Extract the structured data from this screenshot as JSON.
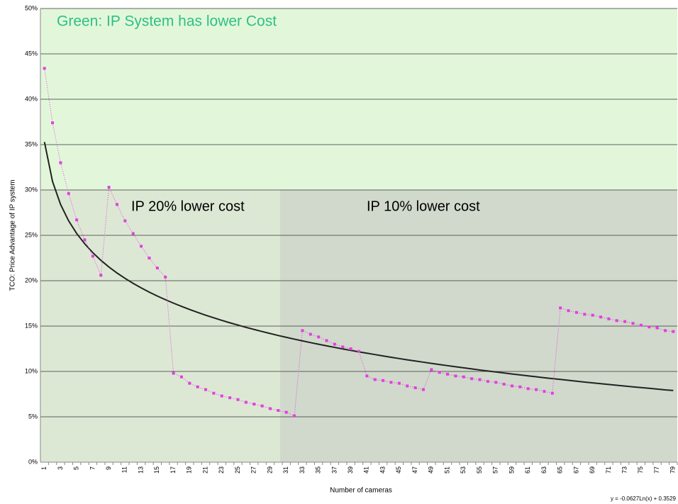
{
  "chart_data": {
    "type": "line",
    "annotations": [
      "Green: IP System has lower Cost",
      "IP 20% lower cost",
      "IP 10% lower cost"
    ],
    "y_label": "TCO: Price Advantage of IP system",
    "x_label": "Number of cameras",
    "categories": [
      "1",
      null,
      "3",
      null,
      "5",
      null,
      "7",
      null,
      "9",
      null,
      "11",
      null,
      "13",
      null,
      "15",
      null,
      "17",
      null,
      "19",
      null,
      "21",
      null,
      "23",
      null,
      "25",
      null,
      "27",
      null,
      "29",
      null,
      "31",
      null,
      "33",
      null,
      "35",
      null,
      "37",
      null,
      "39",
      null,
      "41",
      null,
      "43",
      null,
      "45",
      null,
      "47",
      null,
      "49",
      null,
      "51",
      null,
      "53",
      null,
      "55",
      null,
      "57",
      null,
      "59",
      null,
      "61",
      null,
      "63",
      null,
      "65",
      null,
      "67",
      null,
      "69",
      null,
      "71",
      null,
      "73",
      null,
      "75",
      null,
      "77",
      null,
      "79"
    ],
    "series": [
      {
        "color": "#e040e0",
        "values": [
          43.4,
          37.4,
          33.0,
          29.6,
          26.7,
          24.5,
          22.7,
          20.6,
          30.3,
          28.4,
          26.6,
          25.2,
          23.8,
          22.5,
          21.4,
          20.4,
          9.8,
          9.4,
          8.7,
          8.3,
          8.0,
          7.6,
          7.3,
          7.1,
          6.9,
          6.6,
          6.4,
          6.2,
          5.9,
          5.7,
          5.5,
          5.1,
          14.5,
          14.1,
          13.8,
          13.4,
          13.0,
          12.7,
          12.5,
          12.2,
          9.5,
          9.1,
          9.0,
          8.8,
          8.7,
          8.4,
          8.2,
          8.0,
          10.2,
          9.9,
          9.7,
          9.5,
          9.4,
          9.2,
          9.1,
          8.9,
          8.8,
          8.6,
          8.4,
          8.3,
          8.1,
          8.0,
          7.8,
          7.6,
          17.0,
          16.7,
          16.5,
          16.3,
          16.2,
          16.0,
          15.8,
          15.6,
          15.5,
          15.3,
          15.1,
          14.9,
          14.8,
          14.5,
          14.4
        ]
      }
    ],
    "trendline": {
      "label": "y = -0.0627Ln(x) + 0.3529",
      "color": "#222",
      "values": [
        35.29,
        30.94,
        28.4,
        26.6,
        25.2,
        24.06,
        23.09,
        22.25,
        21.51,
        20.85,
        20.26,
        19.71,
        19.21,
        18.74,
        18.31,
        17.91,
        17.53,
        17.17,
        16.83,
        16.51,
        16.2,
        15.91,
        15.63,
        15.36,
        15.11,
        14.86,
        14.63,
        14.4,
        14.18,
        13.96,
        13.76,
        13.56,
        13.37,
        13.18,
        13.0,
        12.82,
        12.65,
        12.48,
        12.32,
        12.16,
        12.01,
        11.86,
        11.71,
        11.56,
        11.42,
        11.28,
        11.15,
        11.02,
        10.89,
        10.76,
        10.64,
        10.52,
        10.4,
        10.28,
        10.16,
        10.05,
        9.94,
        9.83,
        9.72,
        9.62,
        9.51,
        9.41,
        9.31,
        9.21,
        9.12,
        9.02,
        8.93,
        8.83,
        8.74,
        8.65,
        8.56,
        8.48,
        8.39,
        8.3,
        8.22,
        8.14,
        8.06,
        7.97,
        7.9
      ]
    },
    "ylim": [
      0,
      50
    ],
    "yticks": [
      {
        "value": 0,
        "label": "0%"
      },
      {
        "value": 5,
        "label": "5%"
      },
      {
        "value": 10,
        "label": "10%"
      },
      {
        "value": 15,
        "label": "15%"
      },
      {
        "value": 20,
        "label": "20%"
      },
      {
        "value": 25,
        "label": "25%"
      },
      {
        "value": 30,
        "label": "30%"
      },
      {
        "value": 35,
        "label": "35%"
      },
      {
        "value": 40,
        "label": "40%"
      },
      {
        "value": 45,
        "label": "45%"
      },
      {
        "value": 50,
        "label": "50%"
      }
    ],
    "grid": true
  }
}
